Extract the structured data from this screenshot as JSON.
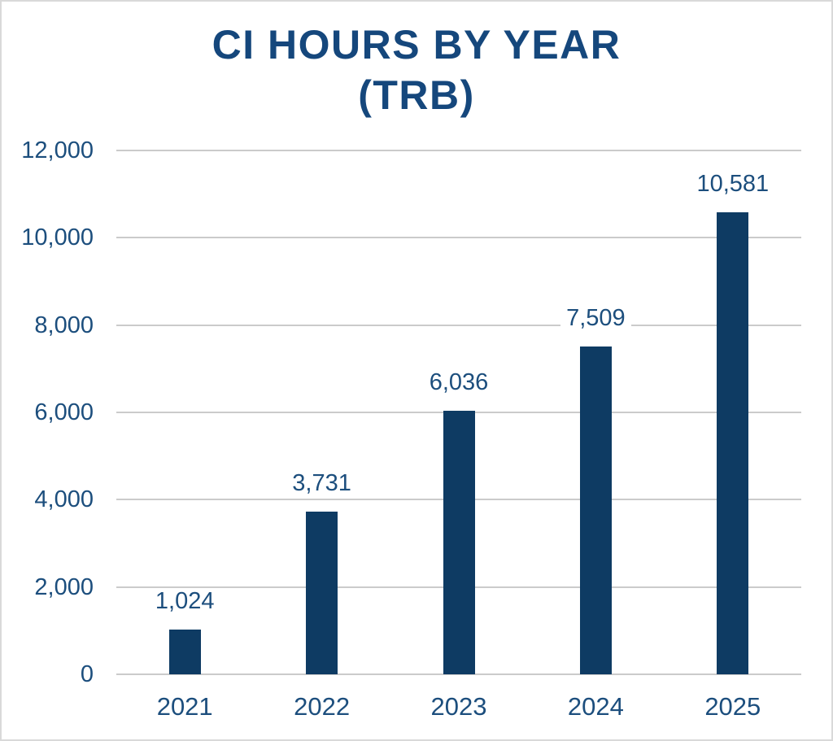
{
  "page": {
    "background": "#ffffff",
    "border_color": "#d9d9d9"
  },
  "title": {
    "line1": "CI HOURS BY YEAR",
    "line2": "(TRB)"
  },
  "chart_data": {
    "type": "bar",
    "title": "CI HOURS BY YEAR (TRB)",
    "categories": [
      "2021",
      "2022",
      "2023",
      "2024",
      "2025"
    ],
    "values": [
      1024,
      3731,
      6036,
      7509,
      10581
    ],
    "value_labels": [
      "1,024",
      "3,731",
      "6,036",
      "7,509",
      "10,581"
    ],
    "xlabel": "",
    "ylabel": "",
    "ylim": [
      0,
      12000
    ],
    "y_ticks": [
      0,
      2000,
      4000,
      6000,
      8000,
      10000,
      12000
    ],
    "y_tick_labels": [
      "0",
      "2,000",
      "4,000",
      "6,000",
      "8,000",
      "10,000",
      "12,000"
    ],
    "grid": true,
    "legend_position": "none",
    "colors": {
      "bar": "#0e3b63",
      "title_text": "#15477c",
      "axis_text": "#1c4e7d",
      "gridline": "#cbcbcb"
    }
  }
}
